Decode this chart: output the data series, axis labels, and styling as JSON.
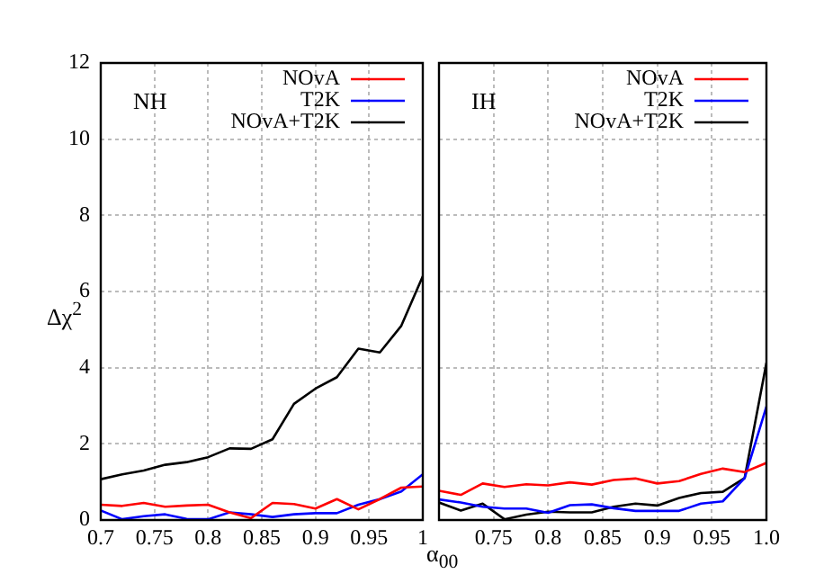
{
  "chart_data": [
    {
      "type": "line",
      "ylabel": "Δχ$^{2}$",
      "annotations": [
        "NH"
      ],
      "x": [
        0.7,
        0.72,
        0.74,
        0.76,
        0.78,
        0.8,
        0.82,
        0.84,
        0.86,
        0.88,
        0.9,
        0.92,
        0.94,
        0.96,
        0.98,
        1.0
      ],
      "series": [
        {
          "name": "NOvA",
          "color": "#ff0000",
          "values": [
            0.4,
            0.37,
            0.45,
            0.35,
            0.38,
            0.4,
            0.2,
            0.05,
            0.45,
            0.42,
            0.3,
            0.55,
            0.28,
            0.55,
            0.85,
            0.88
          ]
        },
        {
          "name": "T2K",
          "color": "#0000ff",
          "values": [
            0.25,
            0.02,
            0.1,
            0.15,
            0.03,
            0.02,
            0.2,
            0.15,
            0.08,
            0.15,
            0.18,
            0.18,
            0.4,
            0.55,
            0.75,
            1.2
          ]
        },
        {
          "name": "NOvA+T2K",
          "color": "#000000",
          "values": [
            1.07,
            1.2,
            1.3,
            1.45,
            1.52,
            1.65,
            1.88,
            1.87,
            2.12,
            3.05,
            3.45,
            3.75,
            4.5,
            4.4,
            5.1,
            6.4
          ]
        }
      ],
      "xlim": [
        0.7,
        1
      ],
      "xticks": [
        0.7,
        0.75,
        0.8,
        0.85,
        0.9,
        0.95,
        1
      ],
      "ylim": [
        0,
        12
      ],
      "yticks": [
        0,
        2,
        4,
        6,
        8,
        10,
        12
      ],
      "grid": true,
      "legend": "top right",
      "marker": "none",
      "line_style": "solid"
    },
    {
      "type": "line",
      "xlabel": "α$_{00}$",
      "annotations": [
        "IH"
      ],
      "x": [
        0.7,
        0.72,
        0.74,
        0.76,
        0.78,
        0.8,
        0.82,
        0.84,
        0.86,
        0.88,
        0.9,
        0.92,
        0.94,
        0.96,
        0.98,
        1.0
      ],
      "series": [
        {
          "name": "NOvA",
          "color": "#ff0000",
          "values": [
            0.77,
            0.66,
            0.96,
            0.87,
            0.94,
            0.91,
            0.99,
            0.93,
            1.05,
            1.09,
            0.96,
            1.02,
            1.21,
            1.35,
            1.26,
            1.5
          ]
        },
        {
          "name": "T2K",
          "color": "#0000ff",
          "values": [
            0.54,
            0.46,
            0.35,
            0.3,
            0.3,
            0.19,
            0.39,
            0.41,
            0.31,
            0.24,
            0.24,
            0.24,
            0.43,
            0.49,
            1.1,
            2.98
          ]
        },
        {
          "name": "NOvA+T2K",
          "color": "#000000",
          "values": [
            0.46,
            0.25,
            0.43,
            0.02,
            0.14,
            0.22,
            0.2,
            0.2,
            0.35,
            0.43,
            0.38,
            0.58,
            0.71,
            0.74,
            1.1,
            4.13
          ]
        }
      ],
      "xlim": [
        0.7,
        1
      ],
      "xticks": [
        {
          "value": 0.7,
          "label": null
        },
        0.75,
        0.8,
        0.85,
        0.9,
        0.95,
        {
          "value": 1,
          "label": "1.0"
        }
      ],
      "ylim": [
        0,
        12
      ],
      "yticks": [
        0,
        2,
        4,
        6,
        8,
        10,
        12
      ],
      "tick_labels": "x",
      "grid": true,
      "legend": "top right",
      "marker": "none",
      "line_style": "solid"
    }
  ]
}
